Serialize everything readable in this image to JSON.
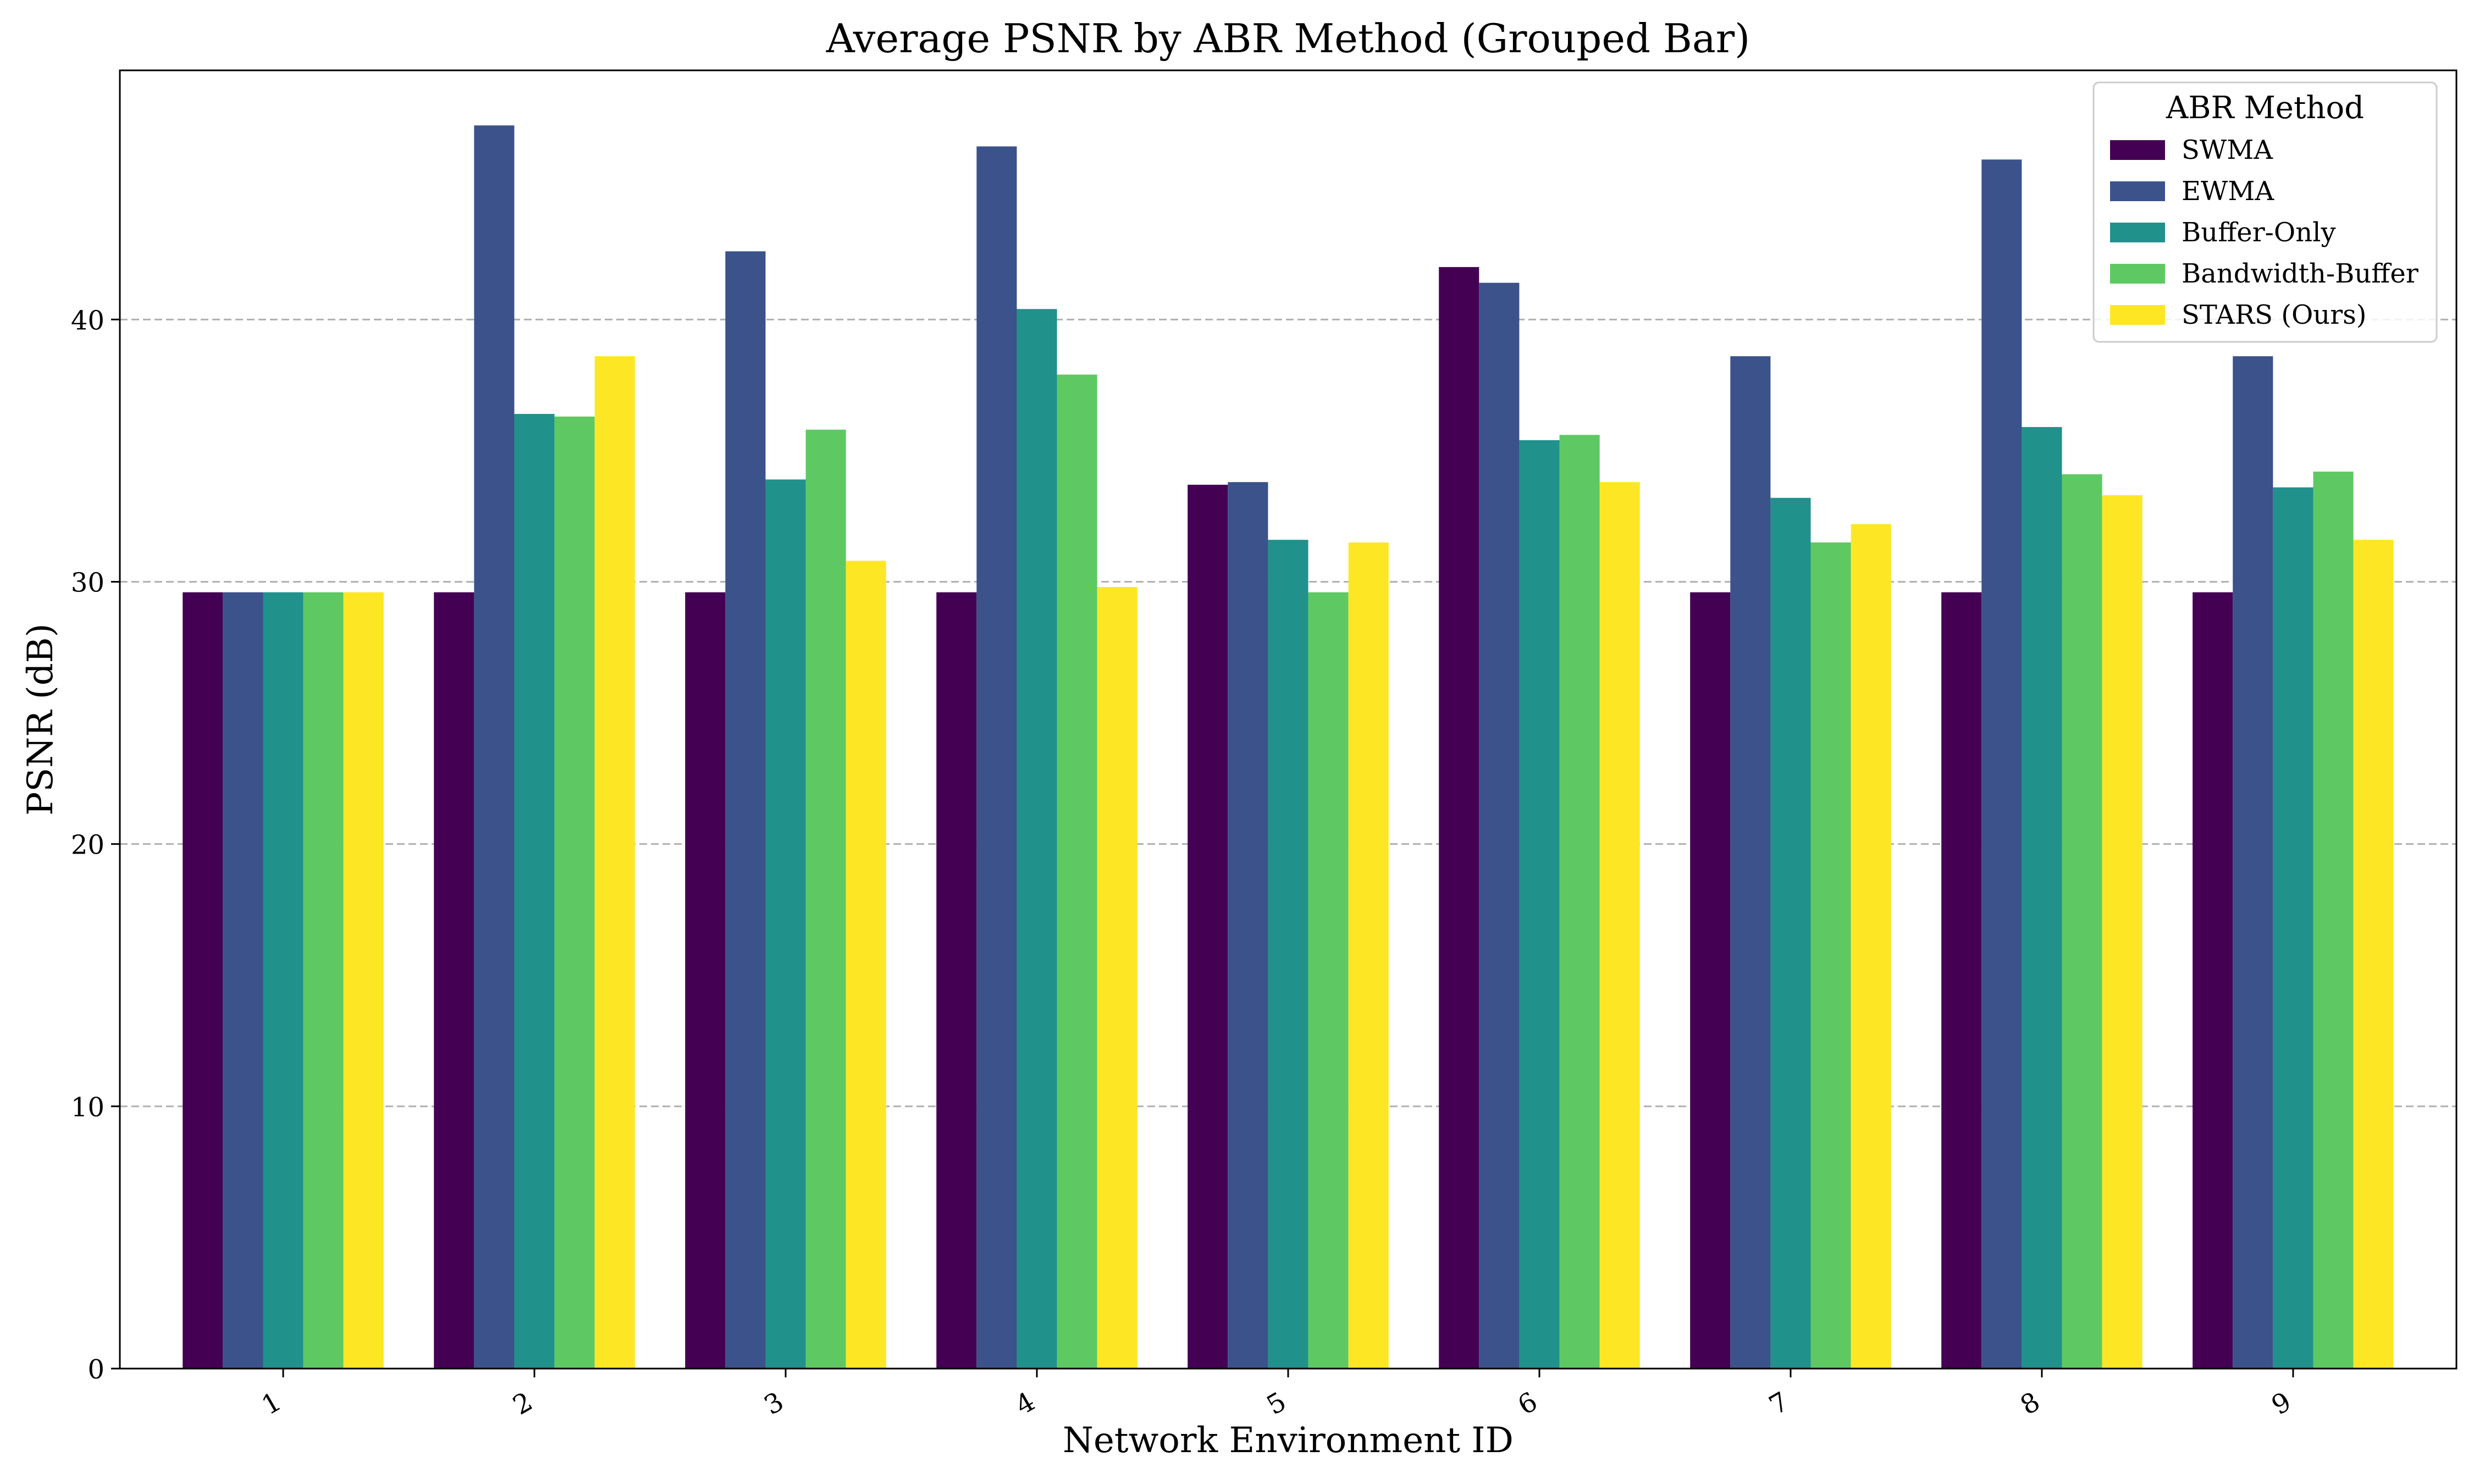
{
  "chart_data": {
    "type": "bar",
    "title": "Average PSNR by ABR Method (Grouped Bar)",
    "xlabel": "Network Environment ID",
    "ylabel": "PSNR (dB)",
    "categories": [
      "1",
      "2",
      "3",
      "4",
      "5",
      "6",
      "7",
      "8",
      "9"
    ],
    "ylim": [
      0,
      49.5
    ],
    "yticks": [
      0,
      10,
      20,
      30,
      40
    ],
    "grid": "horizontal dashed",
    "legend": {
      "title": "ABR Method",
      "placement": "top-right"
    },
    "series": [
      {
        "name": "SWMA",
        "color": "#440154",
        "values": [
          29.6,
          29.6,
          29.6,
          29.6,
          33.7,
          42.0,
          29.6,
          29.6,
          29.6
        ]
      },
      {
        "name": "EWMA",
        "color": "#3b528b",
        "values": [
          29.6,
          47.4,
          42.6,
          46.6,
          33.8,
          41.4,
          38.6,
          46.1,
          38.6
        ]
      },
      {
        "name": "Buffer-Only",
        "color": "#21918c",
        "values": [
          29.6,
          36.4,
          33.9,
          40.4,
          31.6,
          35.4,
          33.2,
          35.9,
          33.6
        ]
      },
      {
        "name": "Bandwidth-Buffer",
        "color": "#5ec962",
        "values": [
          29.6,
          36.3,
          35.8,
          37.9,
          29.6,
          35.6,
          31.5,
          34.1,
          34.2
        ]
      },
      {
        "name": "STARS (Ours)",
        "color": "#fde725",
        "values": [
          29.6,
          38.6,
          30.8,
          29.8,
          31.5,
          33.8,
          32.2,
          33.3,
          31.6
        ]
      }
    ]
  }
}
